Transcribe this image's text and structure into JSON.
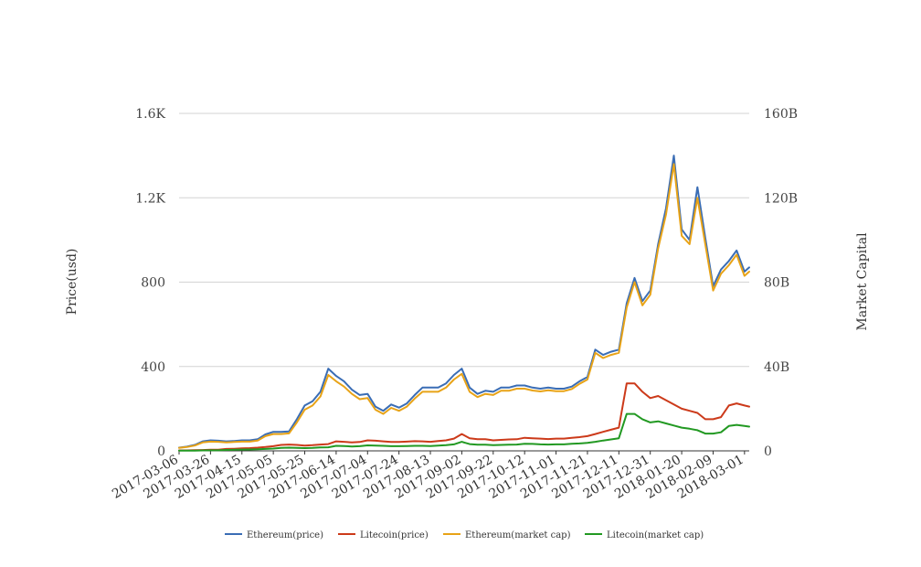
{
  "chart_data": {
    "type": "line",
    "title": "",
    "ylabel_left": "Price(usd)",
    "ylabel_right": "Market Capital",
    "ylim_left": [
      0,
      1600
    ],
    "ylim_right": [
      0,
      160
    ],
    "y_ticks_left": [
      "0",
      "400",
      "800",
      "1.2K",
      "1.6K"
    ],
    "y_ticks_right": [
      "0",
      "40B",
      "80B",
      "120B",
      "160B"
    ],
    "x_ticks": [
      "2017-03-06",
      "2017-03-26",
      "2017-04-15",
      "2017-05-05",
      "2017-05-25",
      "2017-06-14",
      "2017-07-04",
      "2017-07-24",
      "2017-08-13",
      "2017-09-02",
      "2017-09-22",
      "2017-10-12",
      "2017-11-01",
      "2017-11-21",
      "2017-12-11",
      "2017-12-31",
      "2018-01-20",
      "2018-02-09",
      "2018-03-01"
    ],
    "x": [
      "2017-03-06",
      "2017-03-11",
      "2017-03-16",
      "2017-03-21",
      "2017-03-26",
      "2017-03-31",
      "2017-04-05",
      "2017-04-10",
      "2017-04-15",
      "2017-04-20",
      "2017-04-25",
      "2017-04-30",
      "2017-05-05",
      "2017-05-10",
      "2017-05-15",
      "2017-05-20",
      "2017-05-25",
      "2017-05-30",
      "2017-06-04",
      "2017-06-09",
      "2017-06-14",
      "2017-06-19",
      "2017-06-24",
      "2017-06-29",
      "2017-07-04",
      "2017-07-09",
      "2017-07-14",
      "2017-07-19",
      "2017-07-24",
      "2017-07-29",
      "2017-08-03",
      "2017-08-08",
      "2017-08-13",
      "2017-08-18",
      "2017-08-23",
      "2017-08-28",
      "2017-09-02",
      "2017-09-07",
      "2017-09-12",
      "2017-09-17",
      "2017-09-22",
      "2017-09-27",
      "2017-10-02",
      "2017-10-07",
      "2017-10-12",
      "2017-10-17",
      "2017-10-22",
      "2017-10-27",
      "2017-11-01",
      "2017-11-06",
      "2017-11-11",
      "2017-11-16",
      "2017-11-21",
      "2017-11-26",
      "2017-12-01",
      "2017-12-06",
      "2017-12-11",
      "2017-12-16",
      "2017-12-21",
      "2017-12-26",
      "2017-12-31",
      "2018-01-05",
      "2018-01-10",
      "2018-01-15",
      "2018-01-20",
      "2018-01-25",
      "2018-01-30",
      "2018-02-04",
      "2018-02-09",
      "2018-02-14",
      "2018-02-19",
      "2018-02-24",
      "2018-03-01",
      "2018-03-04"
    ],
    "series": [
      {
        "name": "Ethereum(price)",
        "axis": "left",
        "color": "#3a6db5",
        "values": [
          15,
          20,
          28,
          45,
          50,
          48,
          45,
          47,
          50,
          50,
          55,
          78,
          90,
          90,
          92,
          150,
          215,
          235,
          280,
          390,
          355,
          330,
          290,
          265,
          270,
          210,
          190,
          220,
          205,
          225,
          265,
          300,
          300,
          300,
          320,
          360,
          390,
          300,
          270,
          285,
          280,
          300,
          300,
          310,
          310,
          300,
          295,
          300,
          295,
          295,
          305,
          330,
          350,
          480,
          455,
          470,
          480,
          700,
          820,
          710,
          760,
          980,
          1150,
          1400,
          1050,
          1000,
          1250,
          1010,
          780,
          860,
          900,
          950,
          850,
          870
        ]
      },
      {
        "name": "Litecoin(price)",
        "axis": "left",
        "color": "#cc3a1a",
        "values": [
          2,
          2,
          3,
          4,
          5,
          5,
          9,
          10,
          12,
          13,
          15,
          18,
          22,
          28,
          30,
          28,
          25,
          27,
          30,
          32,
          45,
          43,
          40,
          42,
          50,
          48,
          45,
          42,
          42,
          44,
          46,
          45,
          43,
          47,
          50,
          58,
          80,
          60,
          55,
          55,
          50,
          52,
          54,
          55,
          62,
          60,
          58,
          56,
          58,
          58,
          62,
          65,
          70,
          80,
          90,
          100,
          110,
          320,
          320,
          280,
          250,
          260,
          240,
          220,
          200,
          190,
          180,
          150,
          150,
          160,
          215,
          225,
          215,
          210
        ]
      },
      {
        "name": "Ethereum(market cap)",
        "axis": "right",
        "color": "#e8a317",
        "values": [
          1.4,
          1.8,
          2.5,
          4.0,
          4.4,
          4.3,
          4.0,
          4.2,
          4.4,
          4.4,
          4.9,
          7.0,
          8.0,
          8.0,
          8.3,
          13.5,
          19.5,
          21.5,
          25.8,
          36.0,
          33.0,
          30.5,
          27.0,
          24.5,
          25.0,
          19.5,
          17.5,
          20.4,
          19.0,
          21.0,
          24.8,
          28.0,
          28.0,
          28.0,
          30.0,
          33.8,
          36.5,
          28.0,
          25.5,
          27.0,
          26.5,
          28.5,
          28.5,
          29.5,
          29.5,
          28.6,
          28.2,
          28.7,
          28.3,
          28.3,
          29.3,
          31.8,
          33.8,
          46.5,
          44.0,
          45.5,
          46.5,
          68.0,
          80.0,
          69.0,
          74.0,
          96.0,
          112.0,
          136.0,
          102.0,
          98.0,
          120.0,
          98.0,
          76.0,
          84.0,
          88.0,
          93.0,
          83.0,
          85.0
        ]
      },
      {
        "name": "Litecoin(market cap)",
        "axis": "right",
        "color": "#229922",
        "values": [
          0.1,
          0.1,
          0.15,
          0.2,
          0.25,
          0.25,
          0.45,
          0.5,
          0.6,
          0.65,
          0.75,
          0.9,
          1.1,
          1.4,
          1.5,
          1.4,
          1.3,
          1.4,
          1.6,
          1.7,
          2.4,
          2.3,
          2.1,
          2.2,
          2.6,
          2.5,
          2.4,
          2.2,
          2.2,
          2.3,
          2.4,
          2.4,
          2.3,
          2.5,
          2.7,
          3.1,
          4.3,
          3.2,
          2.9,
          2.9,
          2.7,
          2.8,
          2.9,
          3.0,
          3.4,
          3.3,
          3.1,
          3.0,
          3.1,
          3.1,
          3.4,
          3.5,
          3.8,
          4.3,
          4.9,
          5.4,
          6.0,
          17.5,
          17.5,
          15.0,
          13.5,
          14.0,
          13.0,
          12.0,
          11.0,
          10.5,
          9.8,
          8.2,
          8.2,
          8.8,
          11.8,
          12.3,
          11.8,
          11.5
        ]
      }
    ],
    "legend_position": "bottom-center",
    "grid": true
  }
}
